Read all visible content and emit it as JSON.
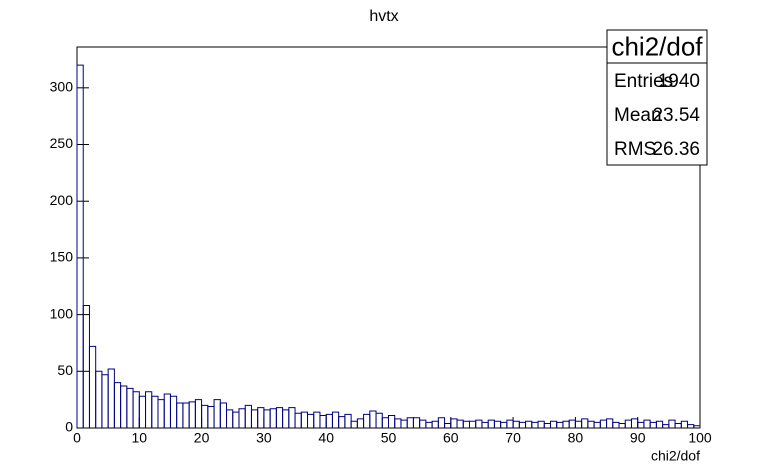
{
  "chart_data": {
    "type": "histogram",
    "title": "hvtx",
    "xlabel": "chi2/dof",
    "bins": [
      0,
      1,
      2,
      3,
      4,
      5,
      6,
      7,
      8,
      9,
      10,
      11,
      12,
      13,
      14,
      15,
      16,
      17,
      18,
      19,
      20,
      21,
      22,
      23,
      24,
      25,
      26,
      27,
      28,
      29,
      30,
      31,
      32,
      33,
      34,
      35,
      36,
      37,
      38,
      39,
      40,
      41,
      42,
      43,
      44,
      45,
      46,
      47,
      48,
      49,
      50,
      51,
      52,
      53,
      54,
      55,
      56,
      57,
      58,
      59,
      60,
      61,
      62,
      63,
      64,
      65,
      66,
      67,
      68,
      69,
      70,
      71,
      72,
      73,
      74,
      75,
      76,
      77,
      78,
      79,
      80,
      81,
      82,
      83,
      84,
      85,
      86,
      87,
      88,
      89,
      90,
      91,
      92,
      93,
      94,
      95,
      96,
      97,
      98,
      99,
      100
    ],
    "values": [
      320,
      108,
      72,
      50,
      47,
      52,
      40,
      37,
      35,
      32,
      28,
      32,
      28,
      25,
      30,
      28,
      22,
      22,
      23,
      25,
      20,
      19,
      25,
      22,
      16,
      14,
      17,
      20,
      16,
      18,
      16,
      17,
      18,
      16,
      18,
      13,
      14,
      12,
      14,
      11,
      12,
      14,
      10,
      12,
      6,
      8,
      12,
      15,
      13,
      9,
      11,
      8,
      7,
      9,
      9,
      7,
      5,
      6,
      9,
      4,
      8,
      7,
      6,
      6,
      7,
      5,
      7,
      6,
      5,
      7,
      6,
      5,
      6,
      5,
      6,
      4,
      6,
      5,
      6,
      7,
      6,
      8,
      6,
      5,
      7,
      8,
      5,
      4,
      7,
      8,
      5,
      7,
      5,
      6,
      3,
      7,
      4,
      6,
      3,
      2
    ],
    "color": "#000080",
    "xlim": [
      0,
      100
    ],
    "xticks": [
      0,
      10,
      20,
      30,
      40,
      50,
      60,
      70,
      80,
      90,
      100
    ],
    "ylim": [
      0,
      336
    ],
    "yticks": [
      0,
      50,
      100,
      150,
      200,
      250,
      300
    ],
    "stats": {
      "title": "chi2/dof",
      "rows": [
        [
          "Entries",
          1940
        ],
        [
          "Mean",
          23.54
        ],
        [
          "RMS",
          26.36
        ]
      ]
    }
  }
}
